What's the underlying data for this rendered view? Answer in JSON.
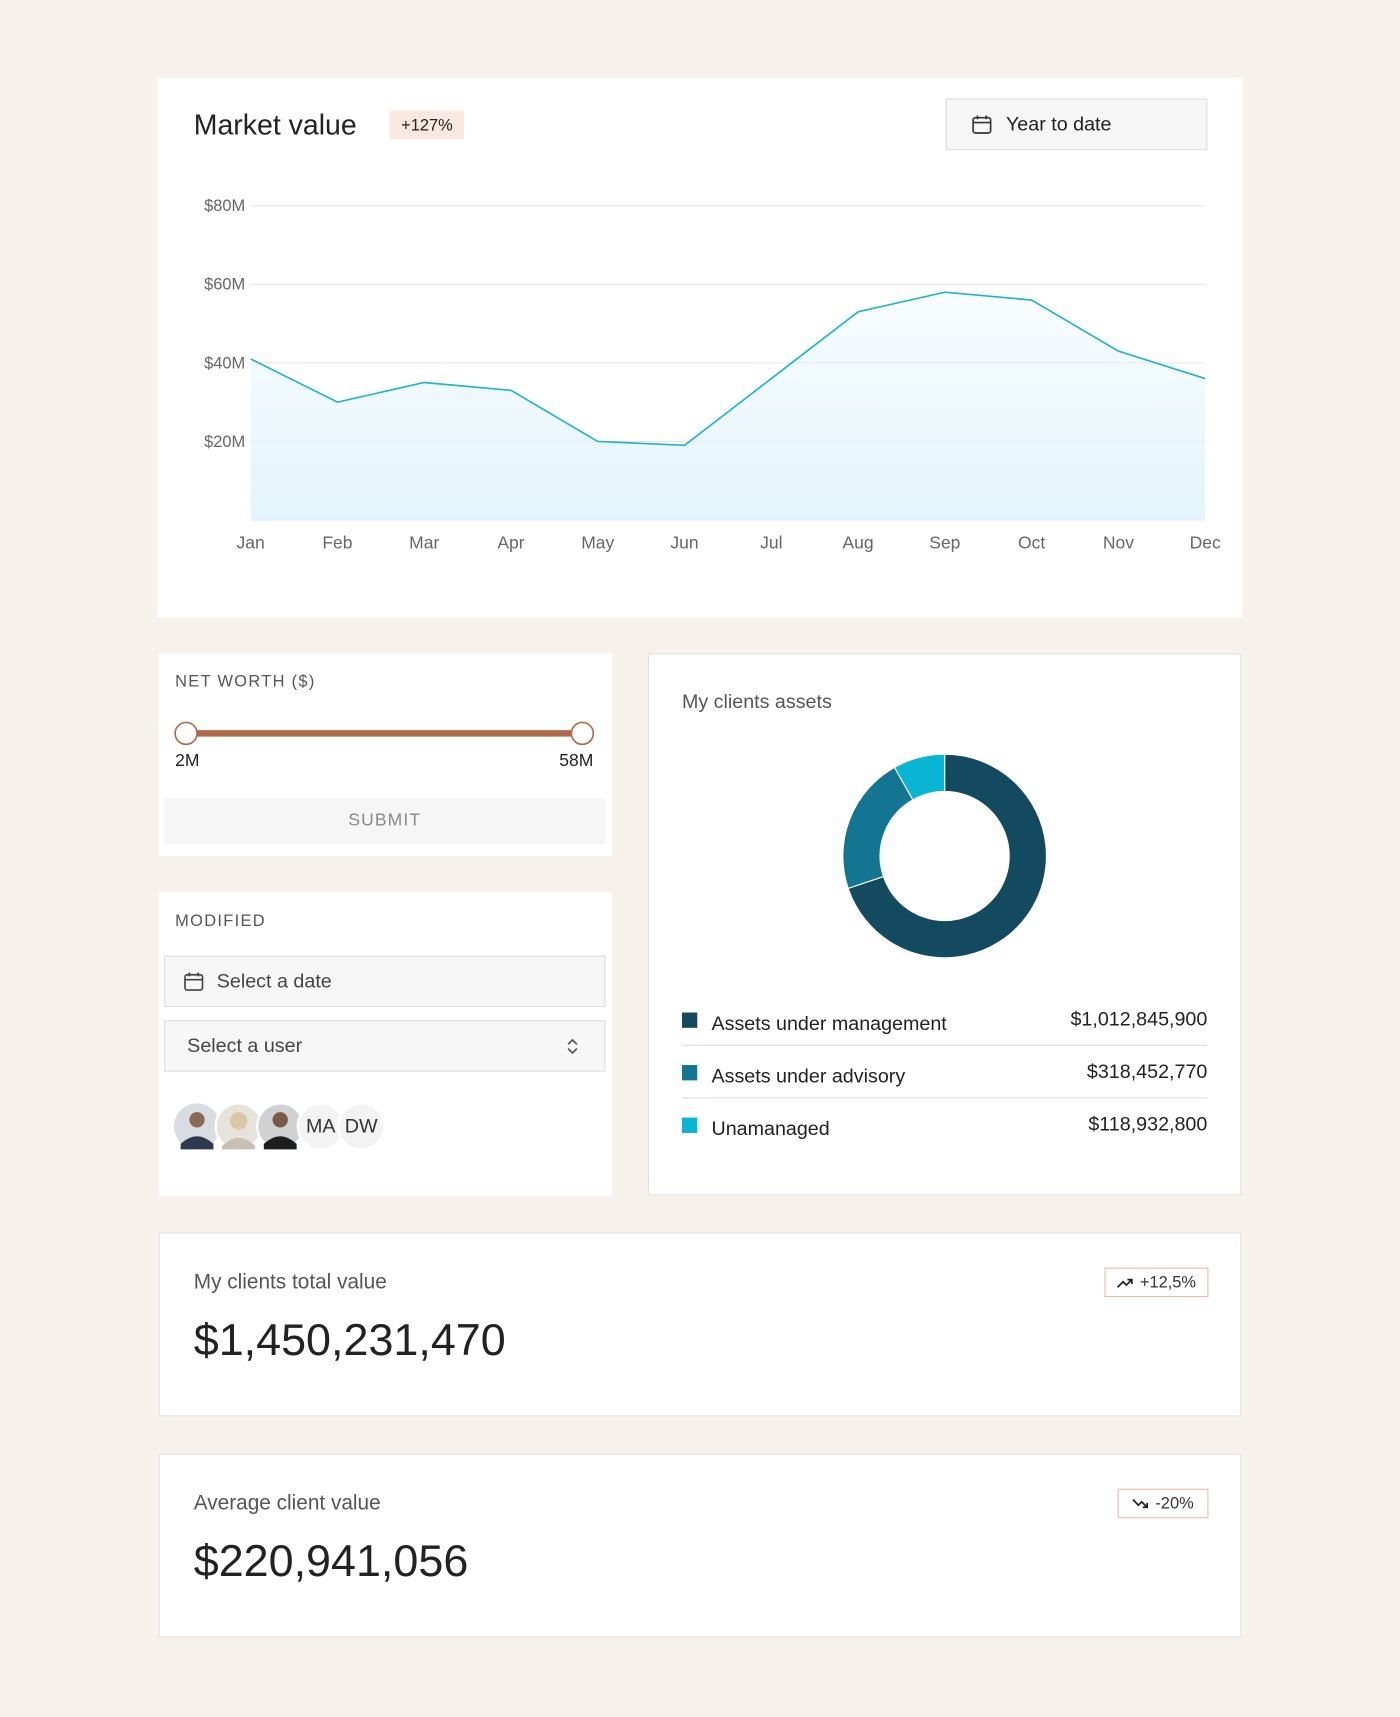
{
  "market_value": {
    "title": "Market value",
    "change": "+127%",
    "range": "Year to date"
  },
  "chart_data": [
    {
      "type": "line",
      "categories": [
        "Jan",
        "Feb",
        "Mar",
        "Apr",
        "May",
        "Jun",
        "Jul",
        "Aug",
        "Sep",
        "Oct",
        "Nov",
        "Dec"
      ],
      "values": [
        41,
        30,
        35,
        33,
        20,
        19,
        36,
        53,
        58,
        56,
        43,
        36
      ],
      "color": "#1fb5cc",
      "area": true,
      "ylim": [
        0,
        80
      ],
      "yticks": [
        {
          "value": 20,
          "label": "$20M"
        },
        {
          "value": 40,
          "label": "$40M"
        },
        {
          "value": 60,
          "label": "$60M"
        },
        {
          "value": 80,
          "label": "$80M"
        }
      ],
      "grid": true
    },
    {
      "type": "pie",
      "title": "My clients assets",
      "categories": [
        "Assets under management",
        "Assets under advisory",
        "Unamanaged"
      ],
      "values": [
        1012845900,
        318452770,
        118932800
      ],
      "value_labels": [
        "$1,012,845,900",
        "$318,452,770",
        "$118,932,800"
      ],
      "colors": [
        "#134a60",
        "#137591",
        "#08b5d3"
      ],
      "donut": true
    }
  ],
  "net_worth": {
    "label": "NET WORTH ($)",
    "min": "2M",
    "max": "58M",
    "button": "SUBMIT"
  },
  "modified": {
    "label": "MODIFIED",
    "date_placeholder": "Select a date",
    "user_placeholder": "Select a user",
    "initials": [
      "MA",
      "DW"
    ]
  },
  "stats": [
    {
      "title": "My clients total value",
      "value": "$1,450,231,470",
      "change": "+12,5%"
    },
    {
      "title": "Average client value",
      "value": "$220,941,056",
      "change": "-20%"
    }
  ]
}
